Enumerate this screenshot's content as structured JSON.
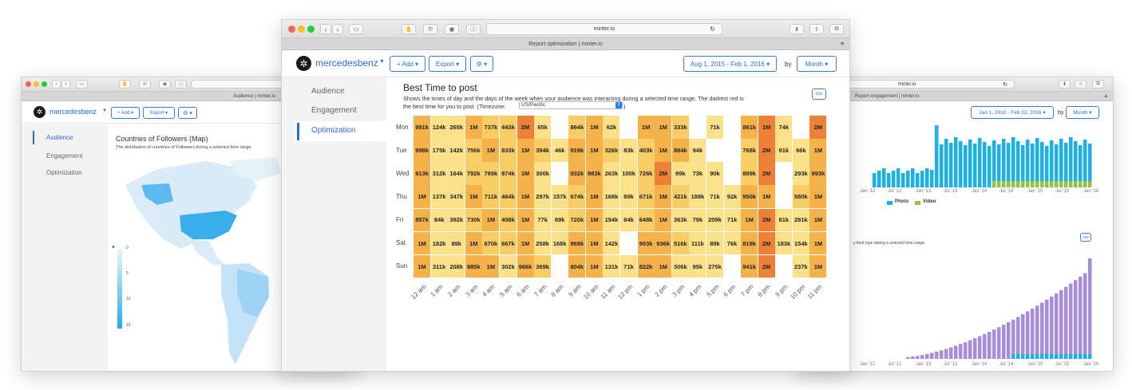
{
  "left_window": {
    "tab_title": "Audience | minter.io",
    "url": "mi",
    "brand": "mercedesbenz",
    "add_label": "+ Add ▾",
    "export_label": "Export ▾",
    "settings_label": "⚙ ▾",
    "sidebar": [
      "Audience",
      "Engagement",
      "Optimization"
    ],
    "chart_title": "Countries of Followers (Map)",
    "chart_subtitle": "The distribution of countries of Followers during a selected time range.",
    "legend_ticks": [
      "0",
      "5",
      "10",
      "15"
    ]
  },
  "main_window": {
    "url": "minter.io",
    "tab_title": "Report optimization | minter.io",
    "brand": "mercedesbenz",
    "add_label": "+ Add ▾",
    "export_label": "Export ▾",
    "settings_label": "⚙ ▾",
    "date_range": "Aug 1, 2015 - Feb 1, 2016 ▾",
    "by_label": "by",
    "period": "Month ▾",
    "sidebar": [
      "Audience",
      "Engagement",
      "Optimization"
    ],
    "title": "Best Time to post",
    "description_1": "Shows the times of day and the days of the week when your audience was interacting during a selected time range. The darkest red is",
    "description_2": "the best time for you to post. (Timezone:",
    "description_3": ")",
    "timezone": "US/Pacific",
    "csv_label": "csv"
  },
  "right_window": {
    "url": "minter.io",
    "tab_title": "Report engagement | minter.io",
    "date_range": "Jan 1, 2010 - Feb 23, 2016 ▾",
    "by_label": "by",
    "period": "Month ▾",
    "legend": [
      "Photo",
      "Video"
    ],
    "subtitle": "y their type during a selected time range.",
    "csv_label": "csv",
    "x_ticks_top": [
      "Jan '12",
      "Jul '12",
      "Jan '13",
      "Jul '13",
      "Jan '14",
      "Jul '14",
      "Jan '15",
      "Jul '15",
      "Jan '16"
    ],
    "x_ticks_bottom": [
      "Jan '12",
      "Jul '12",
      "Jan '13",
      "Jul '13",
      "Jan '14",
      "Jul '14",
      "Jan '15",
      "Jul '15",
      "Jan '16"
    ]
  },
  "colors": {
    "accent": "#2d6cc8",
    "heat_low": "#fbe28a",
    "heat_mid": "#f6b24a",
    "heat_high": "#ee8138",
    "photo": "#1ab0e8",
    "video": "#8dc63f",
    "purple": "#a78bdf"
  },
  "chart_data": {
    "type": "heatmap",
    "title": "Best Time to post",
    "days": [
      "Mon",
      "Tue",
      "Wed",
      "Thu",
      "Fri",
      "Sat",
      "Sun"
    ],
    "hours": [
      "12 am",
      "1 am",
      "2 am",
      "3 am",
      "4 am",
      "5 am",
      "6 am",
      "7 am",
      "8 am",
      "9 am",
      "10 am",
      "11 am",
      "12 pm",
      "1 pm",
      "2 pm",
      "3 pm",
      "4 pm",
      "5 pm",
      "6 pm",
      "7 pm",
      "8 pm",
      "9 pm",
      "10 pm",
      "11 pm"
    ],
    "labels": [
      [
        "991k",
        "124k",
        "265k",
        "1M",
        "737k",
        "443k",
        "2M",
        "65k",
        "",
        "864k",
        "1M",
        "62k",
        "",
        "1M",
        "1M",
        "333k",
        "",
        "71k",
        "",
        "861k",
        "1M",
        "74k",
        "",
        "2M"
      ],
      [
        "998k",
        "175k",
        "142k",
        "756k",
        "1M",
        "833k",
        "1M",
        "394k",
        "46k",
        "919k",
        "1M",
        "326k",
        "83k",
        "403k",
        "1M",
        "884k",
        "94k",
        "",
        "",
        "768k",
        "2M",
        "91k",
        "66k",
        "1M"
      ],
      [
        "913k",
        "312k",
        "164k",
        "792k",
        "789k",
        "974k",
        "1M",
        "300k",
        "",
        "932k",
        "983k",
        "263k",
        "100k",
        "726k",
        "2M",
        "99k",
        "73k",
        "90k",
        "",
        "889k",
        "2M",
        "",
        "293k",
        "893k"
      ],
      [
        "1M",
        "137k",
        "347k",
        "1M",
        "711k",
        "464k",
        "1M",
        "297k",
        "157k",
        "674k",
        "1M",
        "168k",
        "89k",
        "671k",
        "1M",
        "421k",
        "188k",
        "71k",
        "92k",
        "950k",
        "1M",
        "",
        "580k",
        "1M"
      ],
      [
        "957k",
        "84k",
        "392k",
        "730k",
        "1M",
        "408k",
        "1M",
        "77k",
        "69k",
        "720k",
        "1M",
        "154k",
        "84k",
        "648k",
        "1M",
        "363k",
        "79k",
        "209k",
        "71k",
        "1M",
        "2M",
        "81k",
        "281k",
        "1M"
      ],
      [
        "1M",
        "182k",
        "89k",
        "1M",
        "670k",
        "667k",
        "1M",
        "258k",
        "168k",
        "969k",
        "1M",
        "142k",
        "",
        "903k",
        "936k",
        "516k",
        "111k",
        "89k",
        "76k",
        "819k",
        "2M",
        "183k",
        "154k",
        "1M"
      ],
      [
        "1M",
        "311k",
        "208k",
        "985k",
        "1M",
        "302k",
        "966k",
        "369k",
        "",
        "804k",
        "1M",
        "131k",
        "71k",
        "822k",
        "1M",
        "306k",
        "95k",
        "275k",
        "",
        "941k",
        "2M",
        "",
        "237k",
        "1M"
      ]
    ],
    "intensity": [
      [
        3,
        1,
        1,
        3,
        2,
        2,
        4,
        1,
        0,
        2,
        3,
        1,
        0,
        3,
        3,
        2,
        0,
        1,
        0,
        3,
        4,
        1,
        0,
        4
      ],
      [
        3,
        1,
        1,
        2,
        3,
        2,
        3,
        2,
        1,
        3,
        3,
        2,
        1,
        2,
        3,
        3,
        1,
        0,
        0,
        2,
        4,
        1,
        1,
        3
      ],
      [
        3,
        1,
        1,
        2,
        2,
        2,
        3,
        1,
        0,
        3,
        3,
        1,
        1,
        2,
        4,
        1,
        1,
        1,
        0,
        2,
        4,
        0,
        1,
        3
      ],
      [
        3,
        1,
        1,
        3,
        2,
        2,
        3,
        1,
        1,
        2,
        3,
        1,
        1,
        2,
        3,
        2,
        1,
        1,
        1,
        3,
        3,
        0,
        2,
        3
      ],
      [
        3,
        1,
        1,
        2,
        3,
        2,
        3,
        1,
        1,
        2,
        3,
        1,
        1,
        2,
        3,
        1,
        1,
        1,
        1,
        3,
        4,
        1,
        1,
        3
      ],
      [
        3,
        1,
        1,
        3,
        2,
        2,
        3,
        1,
        1,
        3,
        3,
        1,
        0,
        3,
        3,
        2,
        1,
        1,
        1,
        3,
        4,
        1,
        1,
        3
      ],
      [
        3,
        1,
        1,
        3,
        3,
        1,
        3,
        2,
        0,
        3,
        3,
        1,
        1,
        3,
        3,
        1,
        1,
        1,
        0,
        3,
        4,
        0,
        1,
        3
      ]
    ]
  }
}
